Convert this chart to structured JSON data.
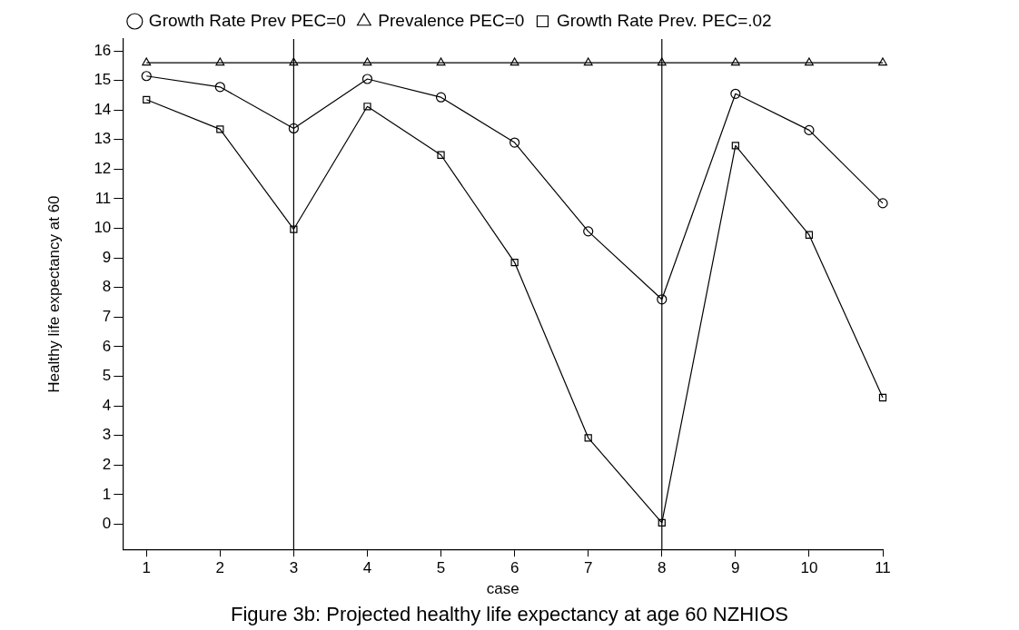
{
  "chart_data": {
    "type": "line",
    "xlabel": "case",
    "ylabel": "Healthy life expectancy at 60",
    "x": [
      1,
      2,
      3,
      4,
      5,
      6,
      7,
      8,
      9,
      10,
      11
    ],
    "series": [
      {
        "name": "Growth Rate Prev PEC=0",
        "color": "#000000",
        "marker": "circle",
        "values": [
          15.15,
          14.78,
          13.38,
          15.05,
          14.43,
          12.9,
          9.9,
          7.6,
          14.55,
          13.32,
          10.85
        ]
      },
      {
        "name": "Prevalence PEC=0",
        "color": "#000000",
        "marker": "triangle",
        "values": [
          15.6,
          15.6,
          15.6,
          15.6,
          15.6,
          15.6,
          15.6,
          15.6,
          15.6,
          15.6,
          15.6
        ]
      },
      {
        "name": "Growth Rate Prev. PEC=.02",
        "color": "#000000",
        "marker": "square",
        "values": [
          14.35,
          13.35,
          9.97,
          14.12,
          12.48,
          8.85,
          2.92,
          0.05,
          12.8,
          9.78,
          4.28
        ]
      }
    ],
    "xlim": [
      0.68,
      11
    ],
    "xticks": [
      1,
      2,
      3,
      4,
      5,
      6,
      7,
      8,
      9,
      10,
      11
    ],
    "ylim": [
      -0.85,
      16.4
    ],
    "yticks": [
      0,
      1,
      2,
      3,
      4,
      5,
      6,
      7,
      8,
      9,
      10,
      11,
      12,
      13,
      14,
      15,
      16
    ],
    "ref_lines": [
      {
        "axis": "x",
        "value": 3,
        "color": "#000000"
      },
      {
        "axis": "x",
        "value": 8,
        "color": "#000000"
      }
    ],
    "grid": false,
    "legend": "top",
    "line_style": "solid",
    "annotations": [
      "Figure 3b: Projected healthy life expectancy at age 60 NZHIOS"
    ]
  }
}
